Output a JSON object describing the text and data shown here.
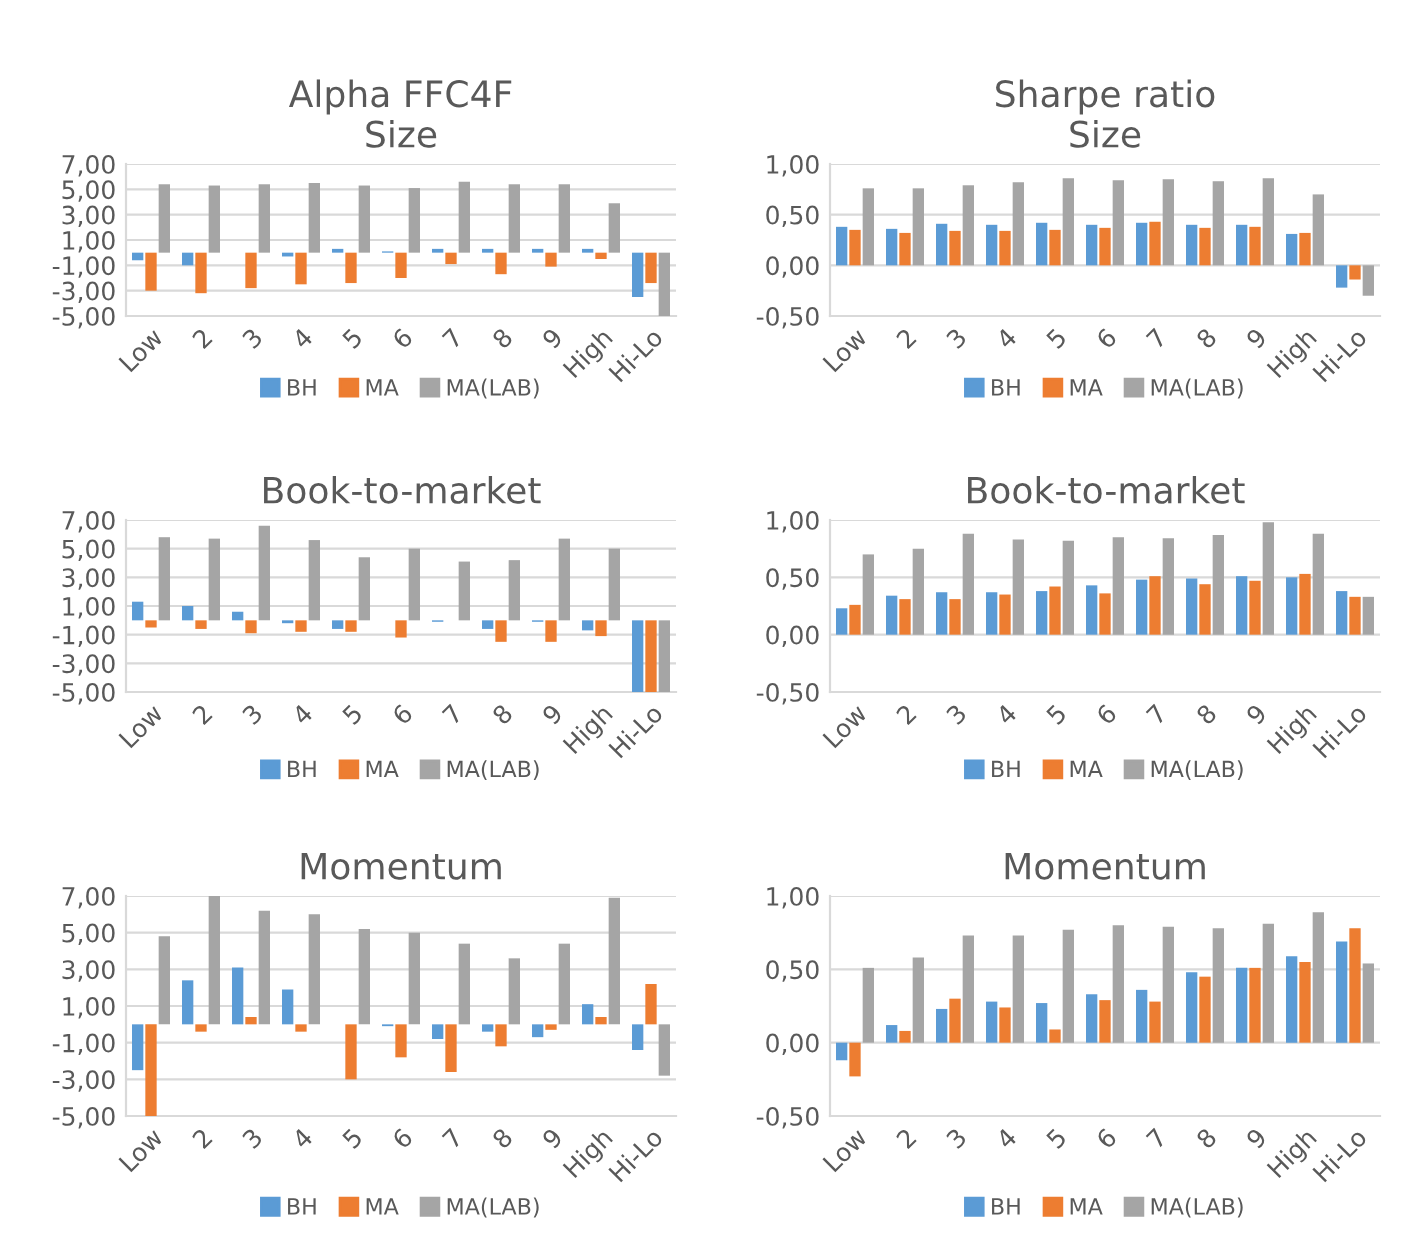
{
  "chart_data": [
    {
      "type": "bar",
      "title": "Alpha FFC4F\nSize",
      "categories": [
        "Low",
        "2",
        "3",
        "4",
        "5",
        "6",
        "7",
        "8",
        "9",
        "High",
        "Hi-Lo"
      ],
      "series": [
        {
          "name": "BH",
          "color": "#5b9bd5",
          "values": [
            -0.6,
            -1.0,
            0,
            -0.3,
            0.3,
            0.1,
            0.3,
            0.3,
            0.3,
            0.3,
            -3.5
          ]
        },
        {
          "name": "MA",
          "color": "#ed7d31",
          "values": [
            -3.0,
            -3.2,
            -2.8,
            -2.5,
            -2.4,
            -2.0,
            -0.9,
            -1.7,
            -1.1,
            -0.5,
            -2.4
          ]
        },
        {
          "name": "MA(LAB)",
          "color": "#a5a5a5",
          "values": [
            5.4,
            5.3,
            5.4,
            5.5,
            5.3,
            5.1,
            5.6,
            5.4,
            5.4,
            3.9,
            -5.0
          ]
        }
      ],
      "ylim": [
        -5,
        7
      ],
      "yticks": [
        {
          "value": -5,
          "label": "-5,00"
        },
        {
          "value": -3,
          "label": "-3,00"
        },
        {
          "value": -1,
          "label": "-1,00"
        },
        {
          "value": 1,
          "label": "1,00"
        },
        {
          "value": 3,
          "label": "3,00"
        },
        {
          "value": 5,
          "label": "5,00"
        },
        {
          "value": 7,
          "label": "7,00"
        }
      ],
      "grid": "y",
      "legend": "bottom"
    },
    {
      "type": "bar",
      "title": "Sharpe ratio\nSize",
      "categories": [
        "Low",
        "2",
        "3",
        "4",
        "5",
        "6",
        "7",
        "8",
        "9",
        "High",
        "Hi-Lo"
      ],
      "series": [
        {
          "name": "BH",
          "color": "#5b9bd5",
          "values": [
            0.38,
            0.36,
            0.41,
            0.4,
            0.42,
            0.4,
            0.42,
            0.4,
            0.4,
            0.31,
            -0.22
          ]
        },
        {
          "name": "MA",
          "color": "#ed7d31",
          "values": [
            0.35,
            0.32,
            0.34,
            0.34,
            0.35,
            0.37,
            0.43,
            0.37,
            0.38,
            0.32,
            -0.14
          ]
        },
        {
          "name": "MA(LAB)",
          "color": "#a5a5a5",
          "values": [
            0.76,
            0.76,
            0.79,
            0.82,
            0.86,
            0.84,
            0.85,
            0.83,
            0.86,
            0.7,
            -0.3
          ]
        }
      ],
      "ylim": [
        -0.5,
        1
      ],
      "yticks": [
        {
          "value": -0.5,
          "label": "-0,50"
        },
        {
          "value": 0,
          "label": "0,00"
        },
        {
          "value": 0.5,
          "label": "0,50"
        },
        {
          "value": 1,
          "label": "1,00"
        }
      ],
      "grid": "y",
      "legend": "bottom"
    },
    {
      "type": "bar",
      "title": "Book-to-market",
      "categories": [
        "Low",
        "2",
        "3",
        "4",
        "5",
        "6",
        "7",
        "8",
        "9",
        "High",
        "Hi-Lo"
      ],
      "series": [
        {
          "name": "BH",
          "color": "#5b9bd5",
          "values": [
            1.3,
            1.0,
            0.6,
            -0.2,
            -0.6,
            0,
            -0.1,
            -0.6,
            -0.1,
            -0.7,
            -5.0
          ]
        },
        {
          "name": "MA",
          "color": "#ed7d31",
          "values": [
            -0.5,
            -0.6,
            -0.9,
            -0.8,
            -0.8,
            -1.2,
            0,
            -1.5,
            -1.5,
            -1.1,
            -5.0
          ]
        },
        {
          "name": "MA(LAB)",
          "color": "#a5a5a5",
          "values": [
            5.8,
            5.7,
            6.6,
            5.6,
            4.4,
            5.0,
            4.1,
            4.2,
            5.7,
            5.0,
            -5.0
          ]
        }
      ],
      "ylim": [
        -5,
        7
      ],
      "yticks": [
        {
          "value": -5,
          "label": "-5,00"
        },
        {
          "value": -3,
          "label": "-3,00"
        },
        {
          "value": -1,
          "label": "-1,00"
        },
        {
          "value": 1,
          "label": "1,00"
        },
        {
          "value": 3,
          "label": "3,00"
        },
        {
          "value": 5,
          "label": "5,00"
        },
        {
          "value": 7,
          "label": "7,00"
        }
      ],
      "grid": "y",
      "legend": "bottom"
    },
    {
      "type": "bar",
      "title": "Book-to-market",
      "categories": [
        "Low",
        "2",
        "3",
        "4",
        "5",
        "6",
        "7",
        "8",
        "9",
        "High",
        "Hi-Lo"
      ],
      "series": [
        {
          "name": "BH",
          "color": "#5b9bd5",
          "values": [
            0.23,
            0.34,
            0.37,
            0.37,
            0.38,
            0.43,
            0.48,
            0.49,
            0.51,
            0.5,
            0.38
          ]
        },
        {
          "name": "MA",
          "color": "#ed7d31",
          "values": [
            0.26,
            0.31,
            0.31,
            0.35,
            0.42,
            0.36,
            0.51,
            0.44,
            0.47,
            0.53,
            0.33
          ]
        },
        {
          "name": "MA(LAB)",
          "color": "#a5a5a5",
          "values": [
            0.7,
            0.75,
            0.88,
            0.83,
            0.82,
            0.85,
            0.84,
            0.87,
            0.98,
            0.88,
            0.33
          ]
        }
      ],
      "ylim": [
        -0.5,
        1
      ],
      "yticks": [
        {
          "value": -0.5,
          "label": "-0,50"
        },
        {
          "value": 0,
          "label": "0,00"
        },
        {
          "value": 0.5,
          "label": "0,50"
        },
        {
          "value": 1,
          "label": "1,00"
        }
      ],
      "grid": "y",
      "legend": "bottom"
    },
    {
      "type": "bar",
      "title": "Momentum",
      "categories": [
        "Low",
        "2",
        "3",
        "4",
        "5",
        "6",
        "7",
        "8",
        "9",
        "High",
        "Hi-Lo"
      ],
      "series": [
        {
          "name": "BH",
          "color": "#5b9bd5",
          "values": [
            -2.5,
            2.4,
            3.1,
            1.9,
            0,
            -0.1,
            -0.8,
            -0.4,
            -0.7,
            1.1,
            -1.4
          ]
        },
        {
          "name": "MA",
          "color": "#ed7d31",
          "values": [
            -5.0,
            -0.4,
            0.4,
            -0.4,
            -3.0,
            -1.8,
            -2.6,
            -1.2,
            -0.3,
            0.4,
            2.2
          ]
        },
        {
          "name": "MA(LAB)",
          "color": "#a5a5a5",
          "values": [
            4.8,
            7.0,
            6.2,
            6.0,
            5.2,
            5.0,
            4.4,
            3.6,
            4.4,
            6.9,
            -2.8
          ]
        }
      ],
      "ylim": [
        -5,
        7
      ],
      "yticks": [
        {
          "value": -5,
          "label": "-5,00"
        },
        {
          "value": -3,
          "label": "-3,00"
        },
        {
          "value": -1,
          "label": "-1,00"
        },
        {
          "value": 1,
          "label": "1,00"
        },
        {
          "value": 3,
          "label": "3,00"
        },
        {
          "value": 5,
          "label": "5,00"
        },
        {
          "value": 7,
          "label": "7,00"
        }
      ],
      "grid": "y",
      "legend": "bottom"
    },
    {
      "type": "bar",
      "title": "Momentum",
      "categories": [
        "Low",
        "2",
        "3",
        "4",
        "5",
        "6",
        "7",
        "8",
        "9",
        "High",
        "Hi-Lo"
      ],
      "series": [
        {
          "name": "BH",
          "color": "#5b9bd5",
          "values": [
            -0.12,
            0.12,
            0.23,
            0.28,
            0.27,
            0.33,
            0.36,
            0.48,
            0.51,
            0.59,
            0.69
          ]
        },
        {
          "name": "MA",
          "color": "#ed7d31",
          "values": [
            -0.23,
            0.08,
            0.3,
            0.24,
            0.09,
            0.29,
            0.28,
            0.45,
            0.51,
            0.55,
            0.78
          ]
        },
        {
          "name": "MA(LAB)",
          "color": "#a5a5a5",
          "values": [
            0.51,
            0.58,
            0.73,
            0.73,
            0.77,
            0.8,
            0.79,
            0.78,
            0.81,
            0.89,
            0.54
          ]
        }
      ],
      "ylim": [
        -0.5,
        1
      ],
      "yticks": [
        {
          "value": -0.5,
          "label": "-0,50"
        },
        {
          "value": 0,
          "label": "0,00"
        },
        {
          "value": 0.5,
          "label": "0,50"
        },
        {
          "value": 1,
          "label": "1,00"
        }
      ],
      "grid": "y",
      "legend": "bottom"
    }
  ]
}
